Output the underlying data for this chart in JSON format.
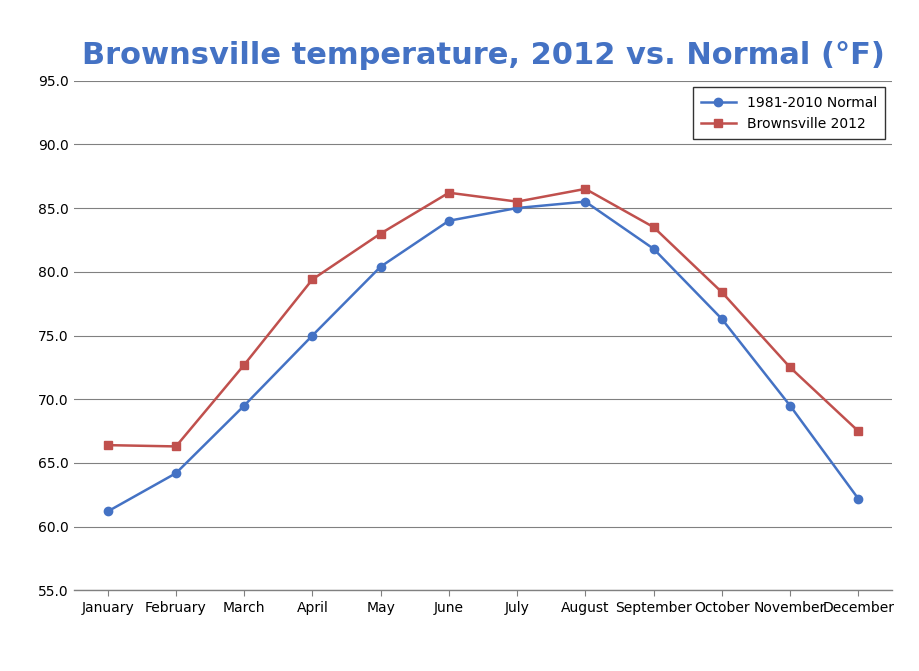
{
  "title": "Brownsville temperature, 2012 vs. Normal (°F)",
  "months": [
    "January",
    "February",
    "March",
    "April",
    "May",
    "June",
    "July",
    "August",
    "September",
    "October",
    "November",
    "December"
  ],
  "normal_values": [
    61.2,
    64.2,
    69.5,
    75.0,
    80.4,
    84.0,
    85.0,
    85.5,
    81.8,
    76.3,
    69.5,
    62.2
  ],
  "brownsville_2012_values": [
    66.4,
    66.3,
    72.7,
    79.4,
    83.0,
    86.2,
    85.5,
    86.5,
    83.5,
    78.4,
    72.5,
    67.5
  ],
  "normal_label": "1981-2010 Normal",
  "brownsville_label": "Brownsville 2012",
  "normal_color": "#4472C4",
  "brownsville_color": "#C0504D",
  "ylim": [
    55.0,
    95.0
  ],
  "yticks": [
    55.0,
    60.0,
    65.0,
    70.0,
    75.0,
    80.0,
    85.0,
    90.0,
    95.0
  ],
  "background_color": "#FFFFFF",
  "plot_background": "#FFFFFF",
  "grid_color": "#808080",
  "title_color": "#4472C4",
  "title_fontsize": 22,
  "legend_fontsize": 10,
  "tick_fontsize": 10,
  "line_width": 1.8,
  "marker_size": 6,
  "spine_color": "#808080"
}
